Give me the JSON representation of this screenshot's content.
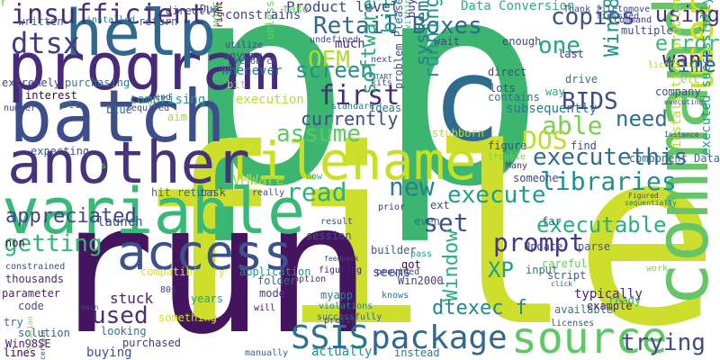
{
  "words": [
    {
      "text": "p",
      "color": "#3bb56f"
    },
    {
      "text": "p",
      "color": "#3bb56f"
    },
    {
      "text": "file",
      "color": "#cddf2c"
    },
    {
      "text": "run",
      "color": "#44155e"
    },
    {
      "text": "c",
      "color": "#2e6b8e"
    },
    {
      "text": "command",
      "color": "#66c667"
    },
    {
      "text": "batch",
      "color": "#3d4f8a"
    },
    {
      "text": "program",
      "color": "#472a7a"
    },
    {
      "text": "filename",
      "color": "#c8e020"
    },
    {
      "text": "variable",
      "color": "#38b977"
    },
    {
      "text": "another",
      "color": "#46327e"
    },
    {
      "text": "help",
      "color": "#31688e"
    },
    {
      "text": "access",
      "color": "#3b528b"
    },
    {
      "text": "source",
      "color": "#5ec962"
    },
    {
      "text": "user",
      "color": "#cde11d"
    },
    {
      "text": "package",
      "color": "#31688e"
    },
    {
      "text": "SSIS",
      "color": "#2c728e"
    },
    {
      "text": "insufficient",
      "color": "#472d7b"
    },
    {
      "text": "Retail Boxes",
      "color": "#30698e"
    },
    {
      "text": "dtsx",
      "color": "#443983"
    },
    {
      "text": "OEM",
      "color": "#addc30"
    },
    {
      "text": "screen",
      "color": "#21918c"
    },
    {
      "text": "first",
      "color": "#472c7a"
    },
    {
      "text": "assume",
      "color": "#5ec962"
    },
    {
      "text": "read",
      "color": "#2ab07f"
    },
    {
      "text": "new",
      "color": "#277f8e"
    },
    {
      "text": "running",
      "color": "#1f988b"
    },
    {
      "text": "copies",
      "color": "#3a548c"
    },
    {
      "text": "using",
      "color": "#46327e"
    },
    {
      "text": "one",
      "color": "#22a785"
    },
    {
      "text": "error",
      "color": "#3dbc74"
    },
    {
      "text": "want",
      "color": "#482576"
    },
    {
      "text": "Win98",
      "color": "#21908d"
    },
    {
      "text": "time",
      "color": "#31688e"
    },
    {
      "text": "BIDS",
      "color": "#3e4989"
    },
    {
      "text": "need",
      "color": "#2d718e"
    },
    {
      "text": "able",
      "color": "#75d054"
    },
    {
      "text": "DOS",
      "color": "#bade28"
    },
    {
      "text": "executethis",
      "color": "#2f6c8e"
    },
    {
      "text": "libraries",
      "color": "#21908d"
    },
    {
      "text": "execute",
      "color": "#1f9e89"
    },
    {
      "text": "executable",
      "color": "#29af7f"
    },
    {
      "text": "prompt",
      "color": "#453781"
    },
    {
      "text": "set",
      "color": "#3b528b"
    },
    {
      "text": "system",
      "color": "#2a788e"
    },
    {
      "text": "bit",
      "color": "#1fa088"
    },
    {
      "text": "software",
      "color": "#22a884"
    },
    {
      "text": "XP",
      "color": "#1fa187"
    },
    {
      "text": "Window",
      "color": "#2cb17e"
    },
    {
      "text": "dtexec f",
      "color": "#24868e"
    },
    {
      "text": "trying",
      "color": "#3e4a89"
    },
    {
      "text": "appreciated",
      "color": "#414487"
    },
    {
      "text": "getting",
      "color": "#34b679"
    },
    {
      "text": "used",
      "color": "#46307e"
    },
    {
      "text": "Product level",
      "color": "#3f4788"
    },
    {
      "text": "Data Conversion",
      "color": "#29af7f"
    },
    {
      "text": "executed successfully",
      "color": "#1e9b8a"
    },
    {
      "text": "installation problem",
      "color": "#b5de2b"
    },
    {
      "text": "currently",
      "color": "#3d4e8a"
    },
    {
      "text": "interest",
      "color": "#440154"
    },
    {
      "text": "written",
      "color": "#355f8d"
    },
    {
      "text": "extremely",
      "color": "#404588"
    },
    {
      "text": "purchasing",
      "color": "#27808e"
    },
    {
      "text": "etc",
      "color": "#287c8e"
    },
    {
      "text": "number",
      "color": "#3f4889"
    },
    {
      "text": "blue",
      "color": "#2e6f8e"
    },
    {
      "text": "comprising",
      "color": "#1fa188"
    },
    {
      "text": "directly",
      "color": "#3b518b"
    },
    {
      "text": "expecting",
      "color": "#3a538b"
    },
    {
      "text": "VMWare",
      "color": "#a2da37"
    },
    {
      "text": "hit return",
      "color": "#2c738e"
    },
    {
      "text": "task",
      "color": "#3d4d8a"
    },
    {
      "text": "non",
      "color": "#440154"
    },
    {
      "text": "compatibility",
      "color": "#d8e219"
    },
    {
      "text": "thousands",
      "color": "#482878"
    },
    {
      "text": "parameter",
      "color": "#482677"
    },
    {
      "text": "code",
      "color": "#3e4c8a"
    },
    {
      "text": "try",
      "color": "#2a788e"
    },
    {
      "text": "solution",
      "color": "#31688e"
    },
    {
      "text": "lines",
      "color": "#440154"
    },
    {
      "text": "Win98SE",
      "color": "#481b6d"
    },
    {
      "text": "stuck",
      "color": "#482475"
    },
    {
      "text": "looking",
      "color": "#2a768e"
    },
    {
      "text": "purchased",
      "color": "#453882"
    },
    {
      "text": "buying",
      "color": "#3b528b"
    },
    {
      "text": "something",
      "color": "#d2e21b"
    },
    {
      "text": "years",
      "color": "#1fa187"
    },
    {
      "text": "80s",
      "color": "#433e85"
    },
    {
      "text": "main",
      "color": "#3e4989"
    },
    {
      "text": "MOVE",
      "color": "#7ad151"
    },
    {
      "text": "application",
      "color": "#20928c"
    },
    {
      "text": "folder",
      "color": "#2f6c8e"
    },
    {
      "text": "mode",
      "color": "#443983"
    },
    {
      "text": "unless",
      "color": "#6ece58"
    },
    {
      "text": "will",
      "color": "#481668"
    },
    {
      "text": "right",
      "color": "#440154"
    },
    {
      "text": "manually",
      "color": "#34618d"
    },
    {
      "text": "option",
      "color": "#462f7c"
    },
    {
      "text": "session",
      "color": "#3b528b"
    },
    {
      "text": "myapp",
      "color": "#26828e"
    },
    {
      "text": "violations",
      "color": "#238a8d"
    },
    {
      "text": "actually",
      "color": "#21918c"
    },
    {
      "text": "successfully",
      "color": "#31688e"
    },
    {
      "text": "figuring",
      "color": "#482576"
    },
    {
      "text": "pretty",
      "color": "#3e4a89"
    },
    {
      "text": "instead",
      "color": "#2a778e"
    },
    {
      "text": "knows",
      "color": "#2a788e"
    },
    {
      "text": "seems",
      "color": "#3e4989"
    },
    {
      "text": "Win2000",
      "color": "#424086"
    },
    {
      "text": "builder",
      "color": "#355e8d"
    },
    {
      "text": "pass",
      "color": "#1f9f88"
    },
    {
      "text": "got",
      "color": "#440154"
    },
    {
      "text": "even",
      "color": "#2c728e"
    },
    {
      "text": "result",
      "color": "#3e4a89"
    },
    {
      "text": "ext",
      "color": "#3e4c8a"
    },
    {
      "text": "prior",
      "color": "#472f7d"
    },
    {
      "text": "within",
      "color": "#3fbc73"
    },
    {
      "text": "careful",
      "color": "#65cb5e"
    },
    {
      "text": "script",
      "color": "#306a8e"
    },
    {
      "text": "Update",
      "color": "#3a548c"
    },
    {
      "text": "parse",
      "color": "#38588c"
    },
    {
      "text": "far",
      "color": "#2f6b8e"
    },
    {
      "text": "available",
      "color": "#277f8e"
    },
    {
      "text": "example",
      "color": "#482173"
    },
    {
      "text": "typically",
      "color": "#482071"
    },
    {
      "text": "ready",
      "color": "#2db27d"
    },
    {
      "text": "licenses",
      "color": "#3b528b"
    },
    {
      "text": "click",
      "color": "#3b528b"
    },
    {
      "text": "input",
      "color": "#2a788e"
    },
    {
      "text": "someone",
      "color": "#3e4989"
    },
    {
      "text": "Many",
      "color": "#46327e"
    },
    {
      "text": "trouble",
      "color": "#7ad151"
    },
    {
      "text": "figure",
      "color": "#3e4a89"
    },
    {
      "text": "find",
      "color": "#3e4c8a"
    },
    {
      "text": "component Data",
      "color": "#31688e"
    },
    {
      "text": "Instance",
      "color": "#3e4989"
    },
    {
      "text": "executing",
      "color": "#3e4a89"
    },
    {
      "text": "sequentially",
      "color": "#2a788e"
    },
    {
      "text": "Figured",
      "color": "#3e4989"
    },
    {
      "text": "work",
      "color": "#7ad151"
    },
    {
      "text": "stubborn",
      "color": "#b5de2b"
    },
    {
      "text": "buy",
      "color": "#46337f"
    },
    {
      "text": "problem Please",
      "color": "#35608d"
    },
    {
      "text": "subsequently",
      "color": "#2a788e"
    },
    {
      "text": "way",
      "color": "#29af7f"
    },
    {
      "text": "drive",
      "color": "#2a788e"
    },
    {
      "text": "lots",
      "color": "#3e4a89"
    },
    {
      "text": "contains",
      "color": "#2c738e"
    },
    {
      "text": "direct",
      "color": "#3e4a89"
    },
    {
      "text": "enough",
      "color": "#3e4a89"
    },
    {
      "text": "last",
      "color": "#443983"
    },
    {
      "text": "company",
      "color": "#3b528b"
    },
    {
      "text": "etc",
      "color": "#9bd93c"
    },
    {
      "text": "licensing",
      "color": "#a8db34"
    },
    {
      "text": "multiple",
      "color": "#3e4a89"
    },
    {
      "text": "filetomove",
      "color": "#3e4989"
    },
    {
      "text": "command",
      "color": "#46327e"
    },
    {
      "text": "finished",
      "color": "#3e4a89"
    },
    {
      "text": "Thank",
      "color": "#3e4a89"
    },
    {
      "text": "wait",
      "color": "#3e4989"
    },
    {
      "text": "undefined",
      "color": "#3e4a89"
    },
    {
      "text": "much",
      "color": "#472f7d"
    },
    {
      "text": "next",
      "color": "#3e4a89"
    },
    {
      "text": "utilize",
      "color": "#3e4989"
    },
    {
      "text": "Due",
      "color": "#3e4a89"
    },
    {
      "text": "constrains",
      "color": "#3e4a89"
    },
    {
      "text": "take",
      "color": "#5ec962"
    },
    {
      "text": "installed",
      "color": "#2a788e"
    },
    {
      "text": "return",
      "color": "#31688e"
    },
    {
      "text": "anyway",
      "color": "#3e4a89"
    },
    {
      "text": "resource",
      "color": "#3e4c8a"
    },
    {
      "text": "Whenever",
      "color": "#2a788e"
    },
    {
      "text": "kits",
      "color": "#3e4989"
    },
    {
      "text": "START",
      "color": "#31688e"
    },
    {
      "text": "bit",
      "color": "#a2da37"
    },
    {
      "text": "execution",
      "color": "#b5de2b"
    },
    {
      "text": "standard",
      "color": "#2c728e"
    },
    {
      "text": "ideas",
      "color": "#2c728e"
    },
    {
      "text": "required",
      "color": "#3e4989"
    },
    {
      "text": "end",
      "color": "#3e4a89"
    },
    {
      "text": "aim",
      "color": "#a2da37"
    },
    {
      "text": "really",
      "color": "#3e4a89"
    },
    {
      "text": "now",
      "color": "#29af7f"
    },
    {
      "text": "feedback",
      "color": "#3e4989"
    },
    {
      "text": "provided",
      "color": "#3e4989"
    },
    {
      "text": "location",
      "color": "#7ad151"
    },
    {
      "text": "certain",
      "color": "#3e4a89"
    },
    {
      "text": "launch",
      "color": "#3e4a89"
    },
    {
      "text": "constrained",
      "color": "#3e4a89"
    },
    {
      "text": "s",
      "color": "#5ec962"
    },
    {
      "text": "f",
      "color": "#2c728e"
    },
    {
      "text": "f",
      "color": "#7ad151"
    }
  ]
}
